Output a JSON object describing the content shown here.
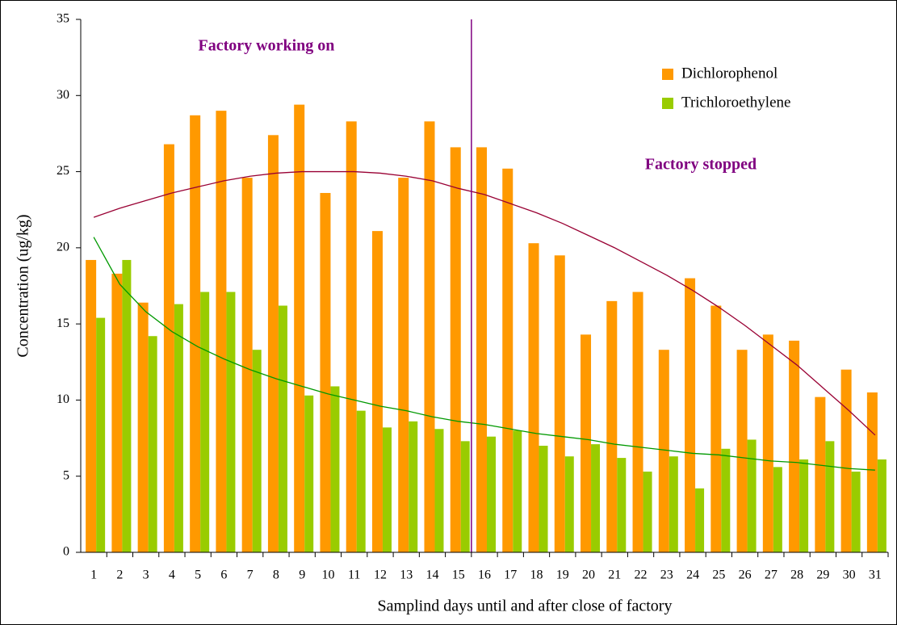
{
  "chart_data": {
    "type": "bar",
    "x_label": "Samplind days until and after close of factory",
    "y_label": "Concentration (ug/kg)",
    "categories": [
      "1",
      "2",
      "3",
      "4",
      "5",
      "6",
      "7",
      "8",
      "9",
      "10",
      "11",
      "12",
      "13",
      "14",
      "15",
      "16",
      "17",
      "18",
      "19",
      "20",
      "21",
      "22",
      "23",
      "24",
      "25",
      "26",
      "27",
      "28",
      "29",
      "30",
      "31"
    ],
    "series": [
      {
        "name": "Dichlorophenol",
        "color": "#ff9900",
        "values": [
          19.2,
          18.3,
          16.4,
          26.8,
          28.7,
          29.0,
          24.6,
          27.4,
          29.4,
          23.6,
          28.3,
          21.1,
          24.6,
          28.3,
          26.6,
          26.6,
          25.2,
          20.3,
          19.5,
          14.3,
          16.5,
          17.1,
          13.3,
          18.0,
          16.2,
          13.3,
          14.3,
          13.9,
          10.2,
          12.0,
          10.5
        ]
      },
      {
        "name": "Trichloroethylene",
        "color": "#99cc00",
        "values": [
          15.4,
          19.2,
          14.2,
          16.3,
          17.1,
          17.1,
          13.3,
          16.2,
          10.3,
          10.9,
          9.3,
          8.2,
          8.6,
          8.1,
          7.3,
          7.6,
          8.0,
          7.0,
          6.3,
          7.1,
          6.2,
          5.3,
          6.3,
          4.2,
          6.8,
          7.4,
          5.6,
          6.1,
          7.3,
          5.3,
          6.1
        ]
      }
    ],
    "trendlines": [
      {
        "color": "#990033",
        "values": [
          22.0,
          22.6,
          23.1,
          23.6,
          24.0,
          24.4,
          24.7,
          24.9,
          25.0,
          25.0,
          25.0,
          24.9,
          24.7,
          24.4,
          23.9,
          23.5,
          22.9,
          22.3,
          21.6,
          20.8,
          20.0,
          19.1,
          18.2,
          17.2,
          16.1,
          14.9,
          13.6,
          12.3,
          10.8,
          9.3,
          7.7
        ]
      },
      {
        "color": "#009900",
        "values": [
          20.7,
          17.6,
          15.8,
          14.5,
          13.5,
          12.7,
          12.0,
          11.4,
          10.9,
          10.4,
          10.0,
          9.6,
          9.3,
          8.9,
          8.6,
          8.4,
          8.1,
          7.8,
          7.6,
          7.4,
          7.1,
          6.9,
          6.7,
          6.5,
          6.4,
          6.2,
          6.0,
          5.9,
          5.7,
          5.5,
          5.4
        ]
      }
    ],
    "divider_x": 15.5,
    "divider_color": "#800080",
    "annotations": [
      "Factory working on",
      "Factory stopped"
    ],
    "ylim": [
      0,
      35
    ],
    "yticks": [
      0,
      5,
      10,
      15,
      20,
      25,
      30,
      35
    ],
    "grid": false,
    "legend": "upper right"
  }
}
